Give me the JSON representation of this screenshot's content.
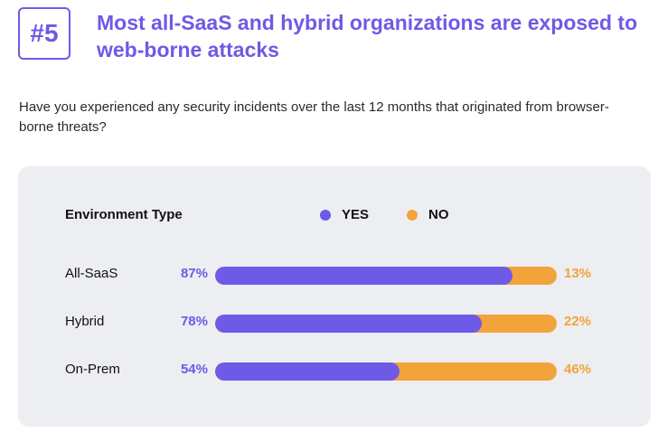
{
  "badge": "#5",
  "headline": "Most all-SaaS and hybrid organizations are exposed to web-borne attacks",
  "question": "Have you experienced any security incidents over the last 12 months that originated from browser-borne threats?",
  "colors": {
    "yes": "#6e5ae6",
    "no": "#f2a33a",
    "card": "#eceef1"
  },
  "chart_data": {
    "type": "bar",
    "stacked": true,
    "orientation": "horizontal",
    "category_header": "Environment Type",
    "categories": [
      "All-SaaS",
      "Hybrid",
      "On-Prem"
    ],
    "series": [
      {
        "name": "YES",
        "values": [
          87,
          78,
          54
        ],
        "labels": [
          "87%",
          "78%",
          "54%"
        ]
      },
      {
        "name": "NO",
        "values": [
          13,
          22,
          46
        ],
        "labels": [
          "13%",
          "22%",
          "46%"
        ]
      }
    ],
    "xlim": [
      0,
      100
    ],
    "legend": "top"
  }
}
